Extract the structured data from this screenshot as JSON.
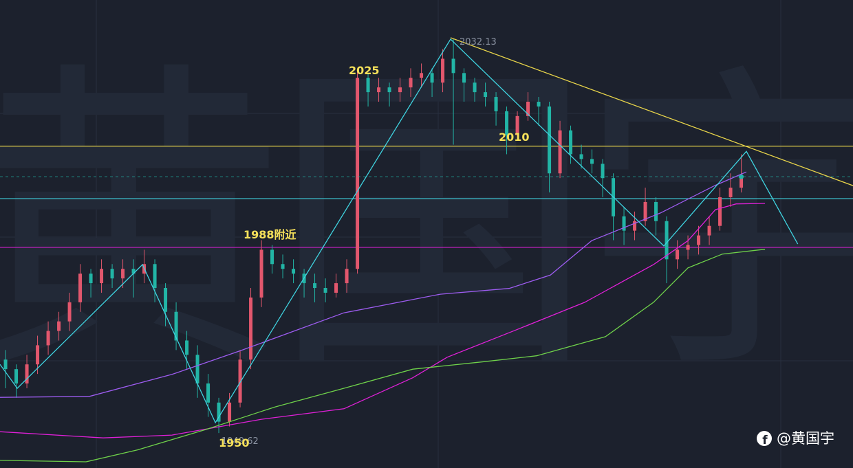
{
  "chart_data": {
    "type": "candlestick",
    "watermark": "黄国宇",
    "author": "@黄国宇",
    "annotations": [
      "2032.13",
      "1949.62",
      "2025",
      "2010",
      "1988附近",
      "1950"
    ],
    "xlim": [
      -0.52,
      79.48
    ],
    "ylim": [
      1942.3,
      2040.3
    ],
    "up_color": "#e2576d",
    "down_color": "#22b5a6",
    "open": [
      1965,
      1963,
      1960,
      1964,
      1968,
      1971,
      1973,
      1977,
      1983,
      1981,
      1984,
      1982,
      1984,
      1983,
      1985,
      1980,
      1975,
      1969,
      1966,
      1960,
      1956,
      1952,
      1956,
      1965,
      1978,
      1988,
      1985,
      1984,
      1983,
      1981,
      1980,
      1979,
      1981,
      1984,
      2024,
      2021,
      2022,
      2021,
      2022,
      2024,
      2025,
      2023,
      2028,
      2025,
      2023,
      2021,
      2020,
      2017,
      2012,
      2016,
      2019,
      2018,
      2004,
      2013,
      2008,
      2007,
      2006,
      2003,
      1995,
      1992,
      1994,
      1998,
      1994,
      1986,
      1988,
      1989,
      1991,
      1993,
      1999,
      2001
    ],
    "high": [
      1967,
      1964,
      1966,
      1970,
      1973,
      1975,
      1979,
      1985,
      1984,
      1986,
      1985,
      1986,
      1986,
      1988,
      1986,
      1981,
      1977,
      1971,
      1968,
      1962,
      1957,
      1958,
      1967,
      1980,
      1990,
      1989,
      1987,
      1986,
      1984,
      1983,
      1982,
      1983,
      1986,
      2025.9,
      2025,
      2024,
      2023,
      2024,
      2026,
      2027,
      2026,
      2030,
      2032.13,
      2026,
      2024,
      2023,
      2021,
      2018,
      2017,
      2021,
      2020,
      2019,
      2015,
      2014,
      2010,
      2009,
      2007,
      2004,
      1997,
      1996,
      2001,
      1999,
      1995,
      1990,
      1991,
      1993,
      1995,
      2001,
      2004,
      2008
    ],
    "low": [
      1959,
      1957,
      1959,
      1962,
      1966,
      1969,
      1971,
      1975,
      1978,
      1979,
      1980,
      1980,
      1978,
      1981,
      1977,
      1972,
      1967,
      1963,
      1957,
      1953,
      1949.62,
      1951,
      1955,
      1963,
      1976,
      1983,
      1982,
      1981,
      1978,
      1977,
      1977,
      1978,
      1979,
      1983,
      2018,
      2019,
      2018,
      2019,
      2020,
      2022,
      2020,
      2021,
      2010,
      2019,
      2019,
      2018,
      2014,
      2008,
      2011,
      2015,
      2014,
      2000,
      2003,
      2006,
      2005,
      2004,
      1999,
      1990,
      1989,
      1990,
      1993,
      1991,
      1981,
      1984,
      1986,
      1987,
      1989,
      1992,
      1997,
      2000
    ],
    "close": [
      1963,
      1960,
      1964,
      1968,
      1971,
      1973,
      1977,
      1983,
      1981,
      1984,
      1982,
      1984,
      1983,
      1985,
      1980,
      1975,
      1969,
      1966,
      1960,
      1956,
      1952,
      1956,
      1965,
      1978,
      1988,
      1985,
      1984,
      1983,
      1981,
      1980,
      1979,
      1981,
      1984,
      2024,
      2021,
      2022,
      2021,
      2022,
      2024,
      2025,
      2023,
      2028,
      2025,
      2023,
      2021,
      2020,
      2017,
      2012,
      2016,
      2019,
      2018,
      2004,
      2013,
      2008,
      2007,
      2006,
      2003,
      1995,
      1992,
      1994,
      1998,
      1994,
      1986,
      1988,
      1989,
      1991,
      1993,
      1999,
      2001,
      2003.3
    ],
    "lines": [
      {
        "color": "#9d5cf0",
        "x": [
          -0.52,
          7.87,
          15.61,
          22.06,
          31.74,
          40.77,
          47.23,
          51.1,
          54.97,
          61.42,
          66.58,
          69.48
        ],
        "values": [
          1957.1,
          1957.3,
          1961.9,
          1966.9,
          1974.8,
          1978.7,
          1979.9,
          1982.7,
          1989.9,
          1995.7,
          2001.5,
          2004.3
        ]
      },
      {
        "color": "#e020d8",
        "x": [
          -0.52,
          9.16,
          15.61,
          24.0,
          31.74,
          38.19,
          41.42,
          47.87,
          54.32,
          60.77,
          64.0,
          66.58,
          68.52,
          71.23
        ],
        "values": [
          1949.9,
          1948.6,
          1949.2,
          1952.5,
          1954.7,
          1961.2,
          1965.5,
          1971.2,
          1977.0,
          1984.9,
          1989.9,
          1996.4,
          1997.6,
          1997.7
        ]
      },
      {
        "color": "#6fd24a",
        "x": [
          -0.52,
          7.55,
          12.39,
          18.84,
          25.29,
          31.74,
          38.19,
          44.65,
          49.81,
          56.26,
          60.77,
          64.0,
          67.23,
          71.23
        ],
        "values": [
          1943.9,
          1943.6,
          1946.1,
          1950.4,
          1955.1,
          1959.0,
          1963.0,
          1964.5,
          1965.8,
          1969.8,
          1977.0,
          1984.2,
          1987.1,
          1988.1
        ]
      },
      {
        "color": "#3fd3e0",
        "x": [
          -0.52,
          1.1,
          12.84,
          19.68,
          41.74,
          61.74,
          69.48,
          74.3
        ],
        "values": [
          1964.0,
          1959.0,
          1984.9,
          1951.8,
          2032.1,
          1988.8,
          2008.6,
          1989.2
        ]
      },
      {
        "color": "#e8d44a",
        "x": [
          41.74,
          80.0
        ],
        "values": [
          2032.4,
          2001.0
        ]
      }
    ],
    "hlines": [
      {
        "value": 2009.7,
        "color": "#e8d44a"
      },
      {
        "value": 1998.7,
        "color": "#3fd3e0"
      },
      {
        "value": 1988.5,
        "color": "#d61fd0"
      }
    ]
  }
}
